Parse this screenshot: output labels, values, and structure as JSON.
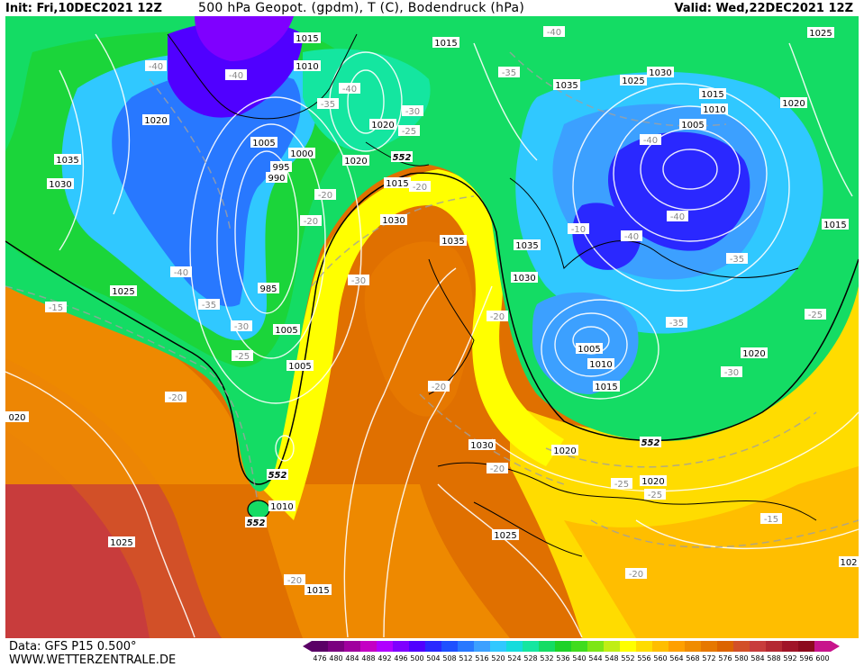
{
  "header": {
    "init": "Init: Fri,10DEC2021 12Z",
    "title": "500 hPa Geopot. (gpdm), T (C), Bodendruck (hPa)",
    "valid": "Valid: Wed,22DEC2021 12Z"
  },
  "footer": {
    "data_source": "Data: GFS P15 0.500°",
    "website": "WWW.WETTERZENTRALE.DE"
  },
  "legend": {
    "values": [
      "476",
      "480",
      "484",
      "488",
      "492",
      "496",
      "500",
      "504",
      "508",
      "512",
      "516",
      "520",
      "524",
      "528",
      "532",
      "536",
      "540",
      "544",
      "548",
      "552",
      "556",
      "560",
      "564",
      "568",
      "572",
      "576",
      "580",
      "584",
      "588",
      "592",
      "596",
      "600"
    ],
    "colors": [
      "#5a0066",
      "#7a007f",
      "#a0009e",
      "#c400c4",
      "#b000ff",
      "#7f00ff",
      "#5000ff",
      "#2a28ff",
      "#1e50ff",
      "#2878ff",
      "#3ca0ff",
      "#30c8ff",
      "#14dcdc",
      "#14e6a0",
      "#14dc64",
      "#1ed228",
      "#40dc1e",
      "#7de614",
      "#c0ee14",
      "#ffff00",
      "#ffdc00",
      "#ffbe00",
      "#ffa000",
      "#f08c00",
      "#e67800",
      "#dc6400",
      "#d25028",
      "#c83c3c",
      "#b42832",
      "#a01428",
      "#8c0a1e",
      "#c8148c"
    ]
  },
  "map": {
    "isobar_labels": [
      {
        "text": "1015"
      },
      {
        "text": "1010"
      },
      {
        "text": "1015"
      },
      {
        "text": "1025"
      },
      {
        "text": "1030"
      },
      {
        "text": "1035"
      },
      {
        "text": "1025"
      },
      {
        "text": "1020"
      },
      {
        "text": "1035"
      },
      {
        "text": "1030"
      },
      {
        "text": "1020"
      },
      {
        "text": "1005"
      },
      {
        "text": "1000"
      },
      {
        "text": "995"
      },
      {
        "text": "990"
      },
      {
        "text": "1020"
      },
      {
        "text": "1015"
      },
      {
        "text": "1030"
      },
      {
        "text": "1035"
      },
      {
        "text": "1035"
      },
      {
        "text": "1030"
      },
      {
        "text": "1025"
      },
      {
        "text": "985"
      },
      {
        "text": "1005"
      },
      {
        "text": "1005"
      },
      {
        "text": "1015"
      },
      {
        "text": "1010"
      },
      {
        "text": "1005"
      },
      {
        "text": "1020"
      },
      {
        "text": "1015"
      },
      {
        "text": "1010"
      },
      {
        "text": "1005"
      },
      {
        "text": "1015"
      },
      {
        "text": "1020"
      },
      {
        "text": "1030"
      },
      {
        "text": "1020"
      },
      {
        "text": "1020"
      },
      {
        "text": "1010"
      },
      {
        "text": "1025"
      },
      {
        "text": "1025"
      },
      {
        "text": "1015"
      },
      {
        "text": "020"
      },
      {
        "text": "1025"
      },
      {
        "text": "102"
      }
    ],
    "temp_labels": [
      {
        "text": "-40"
      },
      {
        "text": "-40"
      },
      {
        "text": "-40"
      },
      {
        "text": "-35"
      },
      {
        "text": "-30"
      },
      {
        "text": "-25"
      },
      {
        "text": "-35"
      },
      {
        "text": "-40"
      },
      {
        "text": "-35"
      },
      {
        "text": "-20"
      },
      {
        "text": "-20"
      },
      {
        "text": "-20"
      },
      {
        "text": "-40"
      },
      {
        "text": "-30"
      },
      {
        "text": "-35"
      },
      {
        "text": "-30"
      },
      {
        "text": "-25"
      },
      {
        "text": "-20"
      },
      {
        "text": "-15"
      },
      {
        "text": "-20"
      },
      {
        "text": "-20"
      },
      {
        "text": "-20"
      },
      {
        "text": "-40"
      },
      {
        "text": "-40"
      },
      {
        "text": "-35"
      },
      {
        "text": "-35"
      },
      {
        "text": "-30"
      },
      {
        "text": "-25"
      },
      {
        "text": "-25"
      },
      {
        "text": "-25"
      },
      {
        "text": "-20"
      },
      {
        "text": "-20"
      },
      {
        "text": "-15"
      },
      {
        "text": "-20"
      },
      {
        "text": "-40"
      },
      {
        "text": "-10"
      }
    ],
    "height_552_labels": [
      {
        "text": "552"
      },
      {
        "text": "552"
      },
      {
        "text": "552"
      },
      {
        "text": "552"
      }
    ]
  }
}
